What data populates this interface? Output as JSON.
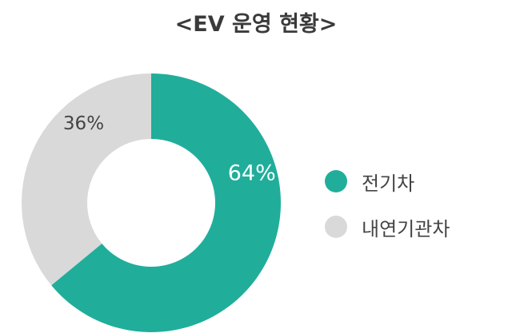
{
  "chart_data": {
    "type": "pie",
    "donut": true,
    "title": "<EV 운영 현황>",
    "categories": [
      "전기차",
      "내연기관차"
    ],
    "values": [
      64,
      36
    ],
    "data_labels": [
      "64%",
      "36%"
    ],
    "colors": [
      "#20ae9b",
      "#d9d9d9"
    ],
    "label_colors": [
      "#ffffff",
      "#444444"
    ],
    "legend_position": "right"
  }
}
